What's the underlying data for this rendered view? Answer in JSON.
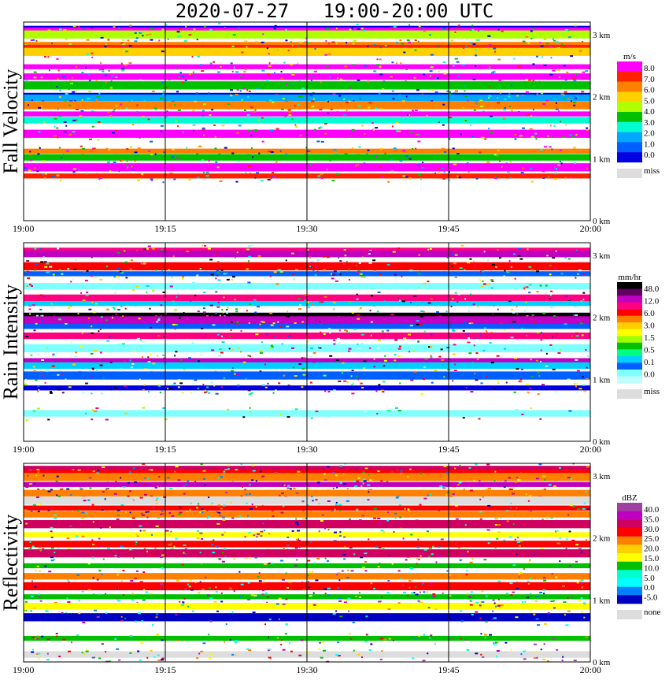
{
  "title": "2020-07-27   19:00-20:00 UTC",
  "chart_data": [
    {
      "type": "heatmap",
      "title": "Fall Velocity",
      "time_ticks": [
        "19:00",
        "19:15",
        "19:30",
        "19:45",
        "20:00"
      ],
      "height_ticks": [
        "0 km",
        "1 km",
        "2 km",
        "3 km"
      ],
      "ylim_km": [
        0,
        3.2
      ],
      "legend": {
        "unit": "m/s",
        "labels": [
          "8.0",
          "7.0",
          "6.0",
          "5.0",
          "4.0",
          "3.0",
          "2.0",
          "1.0",
          "0.0"
        ],
        "colors": [
          "#ff00ff",
          "#ff2000",
          "#ff8000",
          "#ffd000",
          "#b0ff00",
          "#00c000",
          "#00ffd0",
          "#00a8ff",
          "#0060ff",
          "#0000e0"
        ],
        "miss_label": "miss",
        "miss_color": "#dddddd"
      },
      "bands": [
        {
          "km": 3.1,
          "color": "#0000e0"
        },
        {
          "km": 3.06,
          "color": "#ff00ff"
        },
        {
          "km": 3.0,
          "color": "#b0ff00"
        },
        {
          "km": 2.84,
          "color": "#ff8000"
        },
        {
          "km": 2.78,
          "color": "#ff2000"
        },
        {
          "km": 2.72,
          "color": "#ffd000"
        },
        {
          "km": 2.48,
          "color": "#ff00ff"
        },
        {
          "km": 2.32,
          "color": "#ff00ff"
        },
        {
          "km": 2.18,
          "color": "#00c000"
        },
        {
          "km": 2.02,
          "color": "#0000e0"
        },
        {
          "km": 1.98,
          "color": "#00a8ff"
        },
        {
          "km": 1.86,
          "color": "#ff8000"
        },
        {
          "km": 1.72,
          "color": "#ff00ff"
        },
        {
          "km": 1.62,
          "color": "#00ffd0"
        },
        {
          "km": 1.4,
          "color": "#ff00ff"
        },
        {
          "km": 1.12,
          "color": "#ff8000"
        },
        {
          "km": 1.02,
          "color": "#00c000"
        },
        {
          "km": 0.86,
          "color": "#ff00ff"
        },
        {
          "km": 0.72,
          "color": "#ff2000"
        }
      ]
    },
    {
      "type": "heatmap",
      "title": "Rain Intensity",
      "time_ticks": [
        "19:00",
        "19:15",
        "19:30",
        "19:45",
        "20:00"
      ],
      "height_ticks": [
        "0 km",
        "1 km",
        "2 km",
        "3 km"
      ],
      "ylim_km": [
        0,
        3.2
      ],
      "legend": {
        "unit": "mm/hr",
        "labels": [
          "48.0",
          "12.0",
          "6.0",
          "3.0",
          "1.5",
          "0.5",
          "0.1",
          "0.0"
        ],
        "colors": [
          "#000000",
          "#600060",
          "#c000c0",
          "#ff0080",
          "#ff0000",
          "#ff8000",
          "#ffd000",
          "#ffff00",
          "#a0ff00",
          "#00c000",
          "#00ff80",
          "#00d0ff",
          "#0060ff",
          "#80ffff",
          "#c0ffff"
        ],
        "miss_label": "miss",
        "miss_color": "#dddddd"
      },
      "bands": [
        {
          "km": 3.08,
          "color": "#ff0080"
        },
        {
          "km": 3.02,
          "color": "#c000c0"
        },
        {
          "km": 2.82,
          "color": "#ff0000"
        },
        {
          "km": 2.7,
          "color": "#0060ff"
        },
        {
          "km": 2.5,
          "color": "#80ffff"
        },
        {
          "km": 2.3,
          "color": "#ff0080"
        },
        {
          "km": 2.22,
          "color": "#00d0ff"
        },
        {
          "km": 2.02,
          "color": "#000000"
        },
        {
          "km": 1.95,
          "color": "#c000c0"
        },
        {
          "km": 1.85,
          "color": "#0060ff"
        },
        {
          "km": 1.7,
          "color": "#ff0080"
        },
        {
          "km": 1.5,
          "color": "#80ffff"
        },
        {
          "km": 1.3,
          "color": "#c000c0"
        },
        {
          "km": 1.22,
          "color": "#00d0ff"
        },
        {
          "km": 1.06,
          "color": "#0060ff"
        },
        {
          "km": 0.86,
          "color": "#0000e0"
        },
        {
          "km": 0.45,
          "color": "#80ffff"
        }
      ]
    },
    {
      "type": "heatmap",
      "title": "Reflectivity",
      "time_ticks": [
        "19:00",
        "19:15",
        "19:30",
        "19:45",
        "20:00"
      ],
      "height_ticks": [
        "0 km",
        "1 km",
        "2 km",
        "3 km"
      ],
      "ylim_km": [
        0,
        3.2
      ],
      "legend": {
        "unit": "dBZ",
        "labels": [
          "40.0",
          "35.0",
          "30.0",
          "25.0",
          "20.0",
          "15.0",
          "10.0",
          "5.0",
          "0.0",
          "-5.0"
        ],
        "colors": [
          "#a040a0",
          "#c000c0",
          "#d00060",
          "#ff0000",
          "#ff8000",
          "#ffd000",
          "#ffff00",
          "#00c000",
          "#00ffd0",
          "#00ffff",
          "#0080ff",
          "#0000c0"
        ],
        "none_label": "none",
        "none_color": "#dddddd"
      },
      "bands": [
        {
          "km": 3.12,
          "color": "#d00060"
        },
        {
          "km": 3.04,
          "color": "#ff0000"
        },
        {
          "km": 2.98,
          "color": "#ff8000"
        },
        {
          "km": 2.86,
          "color": "#c000c0"
        },
        {
          "km": 2.72,
          "color": "#ff8000"
        },
        {
          "km": 2.6,
          "color": "#dddddd"
        },
        {
          "km": 2.48,
          "color": "#ff0000"
        },
        {
          "km": 2.38,
          "color": "#ff8000"
        },
        {
          "km": 2.22,
          "color": "#d00060"
        },
        {
          "km": 2.05,
          "color": "#ffff00"
        },
        {
          "km": 1.9,
          "color": "#ff0000"
        },
        {
          "km": 1.75,
          "color": "#d00060"
        },
        {
          "km": 1.55,
          "color": "#00c000"
        },
        {
          "km": 1.38,
          "color": "#ff8000"
        },
        {
          "km": 1.22,
          "color": "#ff0000"
        },
        {
          "km": 1.05,
          "color": "#00c000"
        },
        {
          "km": 0.9,
          "color": "#ffff00"
        },
        {
          "km": 0.72,
          "color": "#0000c0"
        },
        {
          "km": 0.38,
          "color": "#00c000"
        },
        {
          "km": 0.12,
          "color": "#dddddd"
        }
      ]
    }
  ]
}
